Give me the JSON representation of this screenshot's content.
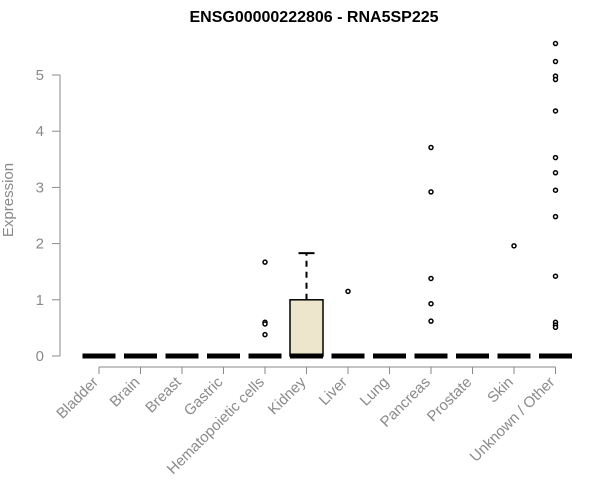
{
  "chart_data": {
    "type": "box",
    "title": "ENSG00000222806 - RNA5SP225",
    "xlabel": "",
    "ylabel": "Expression",
    "ylim": [
      0,
      5.65
    ],
    "yticks": [
      0,
      1,
      2,
      3,
      4,
      5
    ],
    "categories": [
      "Bladder",
      "Brain",
      "Breast",
      "Gastric",
      "Hematopoietic cells",
      "Kidney",
      "Liver",
      "Lung",
      "Pancreas",
      "Prostate",
      "Skin",
      "Unknown / Other"
    ],
    "boxes": [
      {
        "q1": 0,
        "median": 0,
        "q3": 0,
        "whisker_low": 0,
        "whisker_high": 0,
        "outliers": []
      },
      {
        "q1": 0,
        "median": 0,
        "q3": 0,
        "whisker_low": 0,
        "whisker_high": 0,
        "outliers": []
      },
      {
        "q1": 0,
        "median": 0,
        "q3": 0,
        "whisker_low": 0,
        "whisker_high": 0,
        "outliers": []
      },
      {
        "q1": 0,
        "median": 0,
        "q3": 0,
        "whisker_low": 0,
        "whisker_high": 0,
        "outliers": []
      },
      {
        "q1": 0,
        "median": 0,
        "q3": 0,
        "whisker_low": 0,
        "whisker_high": 0,
        "outliers": [
          1.67,
          0.6,
          0.57,
          0.38
        ]
      },
      {
        "q1": 0,
        "median": 0,
        "q3": 1.0,
        "whisker_low": 0,
        "whisker_high": 1.83,
        "outliers": []
      },
      {
        "q1": 0,
        "median": 0,
        "q3": 0,
        "whisker_low": 0,
        "whisker_high": 0,
        "outliers": [
          1.15
        ]
      },
      {
        "q1": 0,
        "median": 0,
        "q3": 0,
        "whisker_low": 0,
        "whisker_high": 0,
        "outliers": []
      },
      {
        "q1": 0,
        "median": 0,
        "q3": 0,
        "whisker_low": 0,
        "whisker_high": 0,
        "outliers": [
          3.71,
          2.92,
          1.38,
          0.93,
          0.62
        ]
      },
      {
        "q1": 0,
        "median": 0,
        "q3": 0,
        "whisker_low": 0,
        "whisker_high": 0,
        "outliers": []
      },
      {
        "q1": 0,
        "median": 0,
        "q3": 0,
        "whisker_low": 0,
        "whisker_high": 0,
        "outliers": [
          1.96
        ]
      },
      {
        "q1": 0,
        "median": 0,
        "q3": 0,
        "whisker_low": 0,
        "whisker_high": 0,
        "outliers": [
          5.56,
          5.24,
          4.98,
          4.92,
          4.36,
          3.53,
          3.26,
          2.95,
          2.48,
          1.42,
          0.6,
          0.55,
          0.51
        ]
      }
    ],
    "colors": {
      "box_fill": "#ede6cc",
      "box_stroke": "#000000",
      "axis": "#8a8a8a",
      "title": "#000000"
    },
    "grid": false,
    "legend": "none"
  }
}
